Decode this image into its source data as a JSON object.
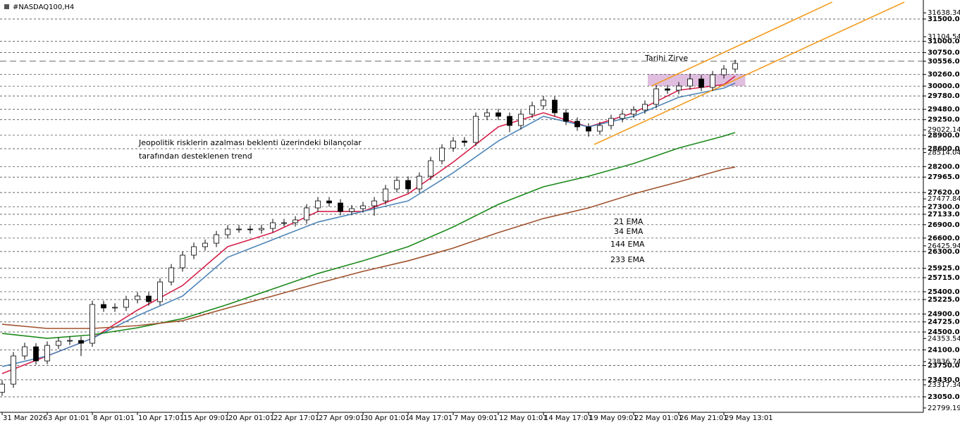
{
  "chart_data": {
    "type": "candlestick",
    "title": "#NASDAQ100,H4",
    "xlim": [
      -0.1875,
      81.6875
    ],
    "ylim": [
      22703,
      31926
    ],
    "xticks": [
      {
        "value": 0,
        "label": "31 Mar 2026"
      },
      {
        "value": 4,
        "label": "3 Apr 01:01"
      },
      {
        "value": 8,
        "label": "8 Apr 01:01"
      },
      {
        "value": 12,
        "label": "10 Apr 17:01"
      },
      {
        "value": 16,
        "label": "15 Apr 09:01"
      },
      {
        "value": 20,
        "label": "20 Apr 01:01"
      },
      {
        "value": 24,
        "label": "22 Apr 17:01"
      },
      {
        "value": 28,
        "label": "27 Apr 09:01"
      },
      {
        "value": 32,
        "label": "30 Apr 01:01"
      },
      {
        "value": 36,
        "label": "4 May 17:01"
      },
      {
        "value": 40,
        "label": "7 May 09:01"
      },
      {
        "value": 44,
        "label": "12 May 01:01"
      },
      {
        "value": 48,
        "label": "14 May 17:01"
      },
      {
        "value": 52,
        "label": "19 May 09:01"
      },
      {
        "value": 56,
        "label": "22 May 01:01"
      },
      {
        "value": 60,
        "label": "26 May 21:01"
      },
      {
        "value": 64,
        "label": "29 May 13:01"
      }
    ],
    "yticks": [
      {
        "value": 31638.34,
        "label": "31638.34"
      },
      {
        "value": 31104.54,
        "label": "31104.54"
      },
      {
        "value": 29022.14,
        "label": "29022.14"
      },
      {
        "value": 28514.04,
        "label": "28514.04"
      },
      {
        "value": 27477.84,
        "label": "27477.84"
      },
      {
        "value": 26425.94,
        "label": "26425.94"
      },
      {
        "value": 24353.54,
        "label": "24353.54"
      },
      {
        "value": 23836.74,
        "label": "23836.74"
      },
      {
        "value": 23317.34,
        "label": "23317.34"
      },
      {
        "value": 22799.19,
        "label": "22799.19"
      }
    ],
    "levels": [
      {
        "value": 31500,
        "label": "31500.00"
      },
      {
        "value": 31000,
        "label": "31000.00"
      },
      {
        "value": 30750,
        "label": "30750.00"
      },
      {
        "value": 30260,
        "label": "30260.00"
      },
      {
        "value": 30000,
        "label": "30000.00"
      },
      {
        "value": 29780,
        "label": "29780.00"
      },
      {
        "value": 29480,
        "label": "29480.00"
      },
      {
        "value": 29250,
        "label": "29250.00"
      },
      {
        "value": 28900,
        "label": "28900.00"
      },
      {
        "value": 28600,
        "label": "28600.00"
      },
      {
        "value": 28200,
        "label": "28200.00"
      },
      {
        "value": 27965,
        "label": "27965.00"
      },
      {
        "value": 27620,
        "label": "27620.00"
      },
      {
        "value": 27300,
        "label": "27300.00"
      },
      {
        "value": 27133,
        "label": "27133.00"
      },
      {
        "value": 26900,
        "label": "26900.00"
      },
      {
        "value": 26600,
        "label": "26600.00"
      },
      {
        "value": 26300,
        "label": "26300.00"
      },
      {
        "value": 25925,
        "label": "25925.00"
      },
      {
        "value": 25715,
        "label": "25715.00"
      },
      {
        "value": 25400,
        "label": "25400.00"
      },
      {
        "value": 25225,
        "label": "25225.00"
      },
      {
        "value": 24900,
        "label": "24900.00"
      },
      {
        "value": 24725,
        "label": "24725.00"
      },
      {
        "value": 24500,
        "label": "24500.00"
      },
      {
        "value": 24100,
        "label": "24100.00"
      },
      {
        "value": 23750,
        "label": "23750.00"
      },
      {
        "value": 23430,
        "label": "23430.00"
      },
      {
        "value": 23050,
        "label": "23050.00"
      }
    ],
    "peak_level": {
      "value": 30556,
      "label": "30556.00",
      "text": "Tarihi Zirve",
      "color": "#1c2ba0"
    },
    "open": [
      23150,
      23333,
      23964,
      24169,
      23853,
      24200,
      24295,
      24311,
      24248,
      25115,
      25036,
      25052,
      25225,
      25304,
      25178,
      25619,
      25935,
      26218,
      26408,
      26486,
      26676,
      26802,
      26802,
      26786,
      26817,
      26944,
      26944,
      27007,
      27275,
      27432,
      27385,
      27196,
      27259,
      27322,
      27432,
      27700,
      27890,
      27700,
      27984,
      28331,
      28615,
      28772,
      28741,
      29324,
      29403,
      29324,
      29119,
      29372,
      29561,
      29687,
      29403,
      29214,
      29088,
      28993,
      29119,
      29277,
      29372,
      29466,
      29592,
      29939,
      29908,
      30002,
      30160,
      29971,
      30254,
      30381
    ],
    "high": [
      23420,
      24050,
      24260,
      24250,
      24290,
      24380,
      24400,
      24400,
      25200,
      25200,
      25140,
      25310,
      25390,
      25390,
      25700,
      26020,
      26300,
      26500,
      26570,
      26760,
      26890,
      26890,
      26880,
      26900,
      27030,
      27030,
      27090,
      27360,
      27520,
      27520,
      27470,
      27340,
      27410,
      27520,
      27790,
      27980,
      27980,
      28070,
      28420,
      28700,
      28860,
      28860,
      29410,
      29490,
      29490,
      29410,
      29460,
      29650,
      29780,
      29770,
      29490,
      29300,
      29170,
      29200,
      29360,
      29460,
      29550,
      29680,
      30020,
      30020,
      30090,
      30280,
      30250,
      30340,
      30470,
      30590
    ],
    "low": [
      23070,
      23250,
      23880,
      23770,
      23780,
      24120,
      24210,
      23960,
      24170,
      24950,
      24950,
      24970,
      25140,
      25090,
      25100,
      25540,
      25850,
      26130,
      26320,
      26400,
      26590,
      26720,
      26700,
      26700,
      26730,
      26860,
      26860,
      26920,
      27190,
      27300,
      27110,
      27110,
      27170,
      27100,
      27350,
      27620,
      27610,
      27620,
      27900,
      28250,
      28530,
      28650,
      28660,
      29240,
      29240,
      28970,
      29030,
      29290,
      29480,
      29320,
      29130,
      29000,
      28870,
      28910,
      29030,
      29190,
      29290,
      29380,
      29510,
      29830,
      29820,
      29920,
      29890,
      29890,
      30170,
      30300
    ],
    "close": [
      23333,
      23964,
      24169,
      23853,
      24200,
      24295,
      24311,
      24248,
      25115,
      25036,
      25052,
      25225,
      25304,
      25178,
      25619,
      25935,
      26218,
      26408,
      26486,
      26676,
      26802,
      26802,
      26786,
      26817,
      26944,
      26944,
      27007,
      27275,
      27432,
      27385,
      27196,
      27259,
      27322,
      27432,
      27700,
      27890,
      27700,
      27984,
      28331,
      28615,
      28772,
      28741,
      29324,
      29403,
      29324,
      29119,
      29372,
      29561,
      29687,
      29403,
      29214,
      29088,
      28993,
      29119,
      29277,
      29372,
      29466,
      29592,
      29939,
      29908,
      30002,
      30160,
      29971,
      30254,
      30381,
      30507
    ],
    "ema_x": [
      0,
      4,
      8,
      12,
      16,
      20,
      24,
      28,
      32,
      36,
      40,
      44,
      48,
      52,
      56,
      60,
      64,
      65
    ],
    "series": [
      {
        "name": "21 EMA",
        "color": "#d6204a",
        "values": [
          23570,
          23964,
          24358,
          24989,
          25540,
          26408,
          26723,
          27196,
          27196,
          27590,
          28300,
          29088,
          29403,
          29088,
          29403,
          29908,
          30034,
          30223
        ]
      },
      {
        "name": "34 EMA",
        "color": "#4f86b8",
        "values": [
          23727,
          23964,
          24358,
          24863,
          25304,
          26171,
          26565,
          26959,
          27196,
          27432,
          28063,
          28772,
          29324,
          29088,
          29324,
          29750,
          29955,
          30065
        ]
      },
      {
        "name": "144 EMA",
        "color": "#1c8a1c",
        "values": [
          24468,
          24358,
          24437,
          24594,
          24799,
          25115,
          25462,
          25808,
          26092,
          26408,
          26849,
          27354,
          27748,
          27984,
          28268,
          28615,
          28883,
          28962
        ]
      },
      {
        "name": "233 EMA",
        "color": "#a0522d",
        "values": [
          24673,
          24579,
          24579,
          24642,
          24752,
          25036,
          25304,
          25588,
          25856,
          26092,
          26376,
          26723,
          27038,
          27275,
          27590,
          27858,
          28142,
          28189
        ]
      }
    ],
    "trend_lines": [
      {
        "x": [
          57.6,
          73.6
        ],
        "values": [
          30002,
          31878
        ],
        "color": "#f39c1e"
      },
      {
        "x": [
          52.5,
          80
        ],
        "values": [
          28694,
          31878
        ],
        "color": "#f39c1e"
      }
    ],
    "zone": {
      "x": [
        57.25,
        65.9
      ],
      "values": [
        30002,
        30270
      ],
      "color": "#d9b3d9"
    },
    "annotation": [
      "Jeopolitik risklerin azalması beklenti üzerindeki bilançolar",
      "tarafından desteklenen trend"
    ],
    "annotation_color": "#b5562c"
  }
}
